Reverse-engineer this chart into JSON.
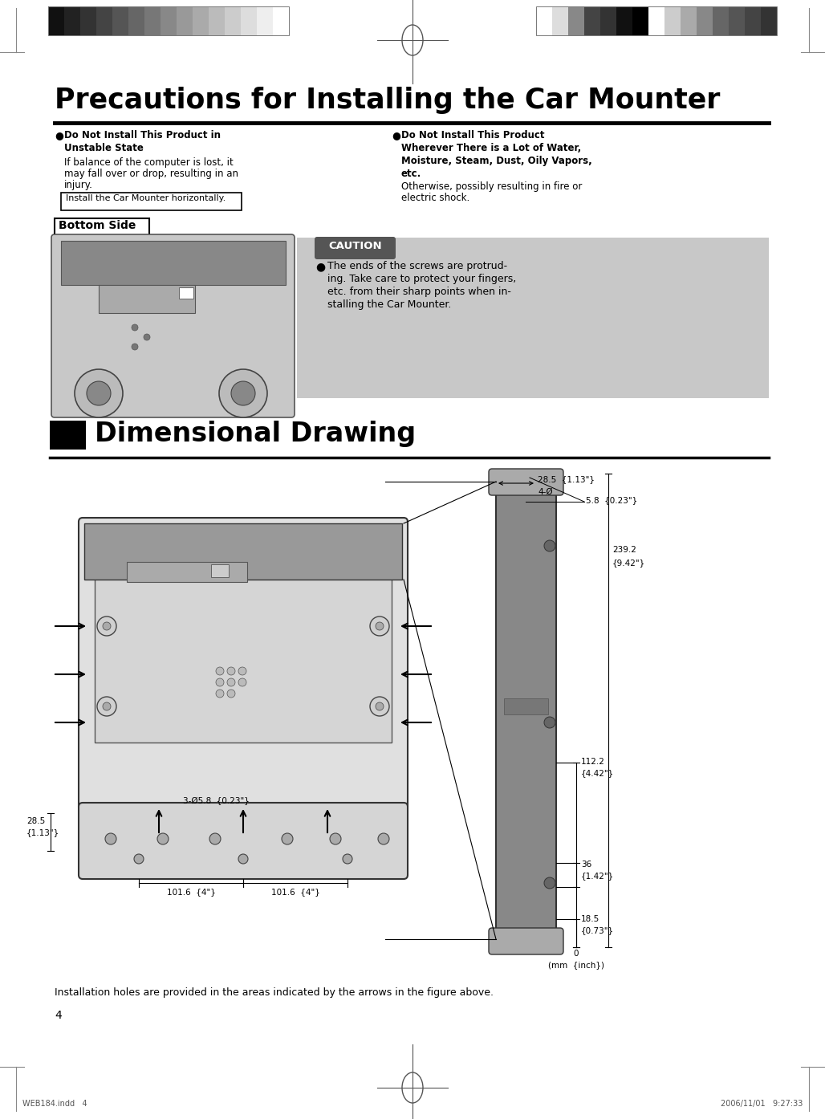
{
  "page_width": 10.28,
  "page_height": 13.94,
  "bg_color": "#ffffff",
  "title": "Precautions for Installing the Car Mounter",
  "section2_title": "Dimensional Drawing",
  "col1_header_bold": "Do Not Install This Product in\nUnstable State",
  "col1_body": "If balance of the computer is lost, it\nmay fall over or drop, resulting in an\ninjury.",
  "col1_note": "Install the Car Mounter horizontally.",
  "col2_header_bold": "Do Not Install This Product\nWherever There is a Lot of Water,\nMoisture, Steam, Dust, Oily Vapors,\netc.",
  "col2_body": "Otherwise, possibly resulting in fire or\nelectric shock.",
  "bottom_side_label": "Bottom Side",
  "caution_label": "CAUTION",
  "caution_text": "The ends of the screws are protrud-\ning. Take care to protect your fingers,\netc. from their sharp points when in-\nstalling the Car Mounter.",
  "footer_left": "WEB184.indd   4",
  "footer_right": "2006/11/01   9:27:33",
  "page_num": "4",
  "install_note": "Installation holes are provided in the areas indicated by the figure above.",
  "colors_left": [
    "#111111",
    "#222222",
    "#333333",
    "#444444",
    "#555555",
    "#666666",
    "#777777",
    "#888888",
    "#999999",
    "#aaaaaa",
    "#bbbbbb",
    "#cccccc",
    "#dddddd",
    "#eeeeee",
    "#ffffff"
  ],
  "colors_right": [
    "#ffffff",
    "#dddddd",
    "#888888",
    "#444444",
    "#333333",
    "#111111",
    "#000000",
    "#ffffff",
    "#cccccc",
    "#aaaaaa",
    "#888888",
    "#666666",
    "#555555",
    "#444444",
    "#333333"
  ]
}
